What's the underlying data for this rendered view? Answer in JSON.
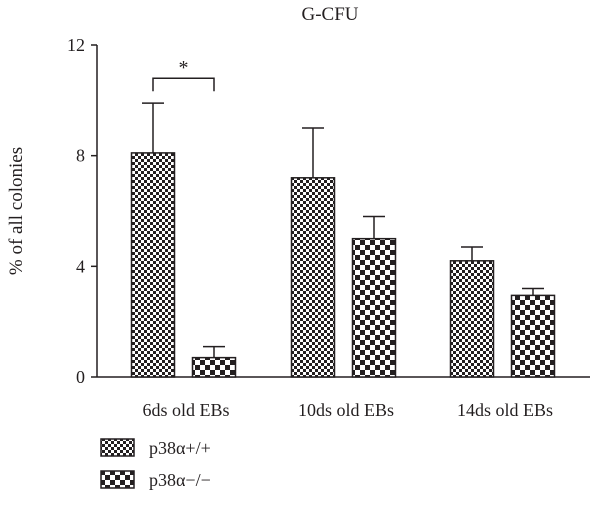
{
  "chart_data": {
    "type": "bar",
    "title": "G-CFU",
    "xlabel": "",
    "ylabel": "% of all colonies",
    "ylim": [
      0,
      12
    ],
    "yticks": [
      "0",
      "4",
      "8",
      "12"
    ],
    "grid": false,
    "legend_position": "bottom-left",
    "categories": [
      "6ds old EBs",
      "10ds old EBs",
      "14ds old EBs"
    ],
    "series": [
      {
        "name": "p38α+/+",
        "values": [
          8.1,
          7.2,
          4.2
        ],
        "errors": [
          1.8,
          1.8,
          0.5
        ],
        "pattern": "fine-checker"
      },
      {
        "name": "p38α−/−",
        "values": [
          0.7,
          5.0,
          2.95
        ],
        "errors": [
          0.4,
          0.8,
          0.25
        ],
        "pattern": "coarse-checker"
      }
    ],
    "annotations": [
      {
        "text": "*",
        "category_index": 0,
        "type": "significance-bracket",
        "y": 10.8
      }
    ],
    "colors": {
      "ink": "#231f20",
      "background": "#ffffff"
    }
  }
}
